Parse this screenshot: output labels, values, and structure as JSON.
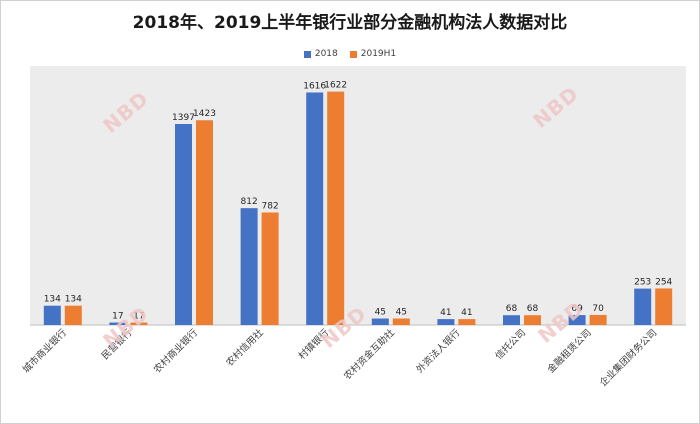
{
  "chart_data": {
    "type": "bar",
    "title": "2018年、2019上半年银行业部分金融机构法人数据对比",
    "categories": [
      "城市商业银行",
      "民营银行",
      "农村商业银行",
      "农村信用社",
      "村镇银行",
      "农村资金互助社",
      "外资法人银行",
      "信托公司",
      "金融租赁公司",
      "企业集团财务公司"
    ],
    "series": [
      {
        "name": "2018",
        "color": "#4472c4",
        "values": [
          134,
          17,
          1397,
          812,
          1616,
          45,
          41,
          68,
          69,
          253
        ]
      },
      {
        "name": "2019H1",
        "color": "#ed7d31",
        "values": [
          134,
          17,
          1423,
          782,
          1622,
          45,
          41,
          68,
          70,
          254
        ]
      }
    ],
    "ylim": [
      0,
      1800
    ],
    "grid": false,
    "legend_position": "top-center",
    "plot_background": "#ececec"
  },
  "watermark": {
    "text": "NBD",
    "color": "#f0c7c7"
  }
}
